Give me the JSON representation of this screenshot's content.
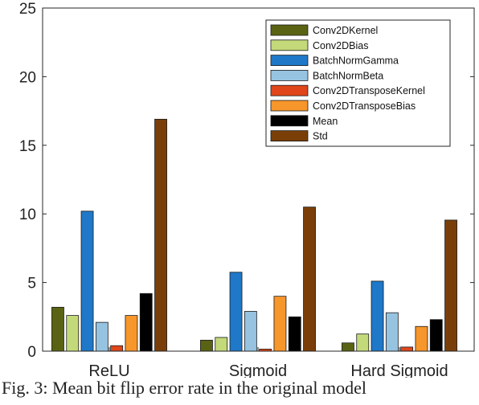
{
  "caption": "Fig. 3: Mean bit flip error rate in the original model",
  "chart_data": {
    "type": "bar",
    "categories": [
      "ReLU",
      "Sigmoid",
      "Hard Sigmoid"
    ],
    "ylim": [
      0,
      25
    ],
    "yticks": [
      0,
      5,
      10,
      15,
      20,
      25
    ],
    "grid": false,
    "legend_position": "top-right",
    "series": [
      {
        "name": "Conv2DKernel",
        "color": "#5a6313",
        "values": [
          3.2,
          0.8,
          0.6
        ]
      },
      {
        "name": "Conv2DBias",
        "color": "#c3d97a",
        "values": [
          2.6,
          1.0,
          1.25
        ]
      },
      {
        "name": "BatchNormGamma",
        "color": "#1f78c8",
        "values": [
          10.2,
          5.75,
          5.1
        ]
      },
      {
        "name": "BatchNormBeta",
        "color": "#96c3e0",
        "values": [
          2.1,
          2.9,
          2.8
        ]
      },
      {
        "name": "Conv2DTransposeKernel",
        "color": "#e0461a",
        "values": [
          0.4,
          0.15,
          0.3
        ]
      },
      {
        "name": "Conv2DTransposeBias",
        "color": "#f7962b",
        "values": [
          2.6,
          4.0,
          1.8
        ]
      },
      {
        "name": "Mean",
        "color": "#000000",
        "values": [
          4.2,
          2.5,
          2.3
        ]
      },
      {
        "name": "Std",
        "color": "#7a3f08",
        "values": [
          16.9,
          10.5,
          9.55
        ]
      }
    ]
  }
}
